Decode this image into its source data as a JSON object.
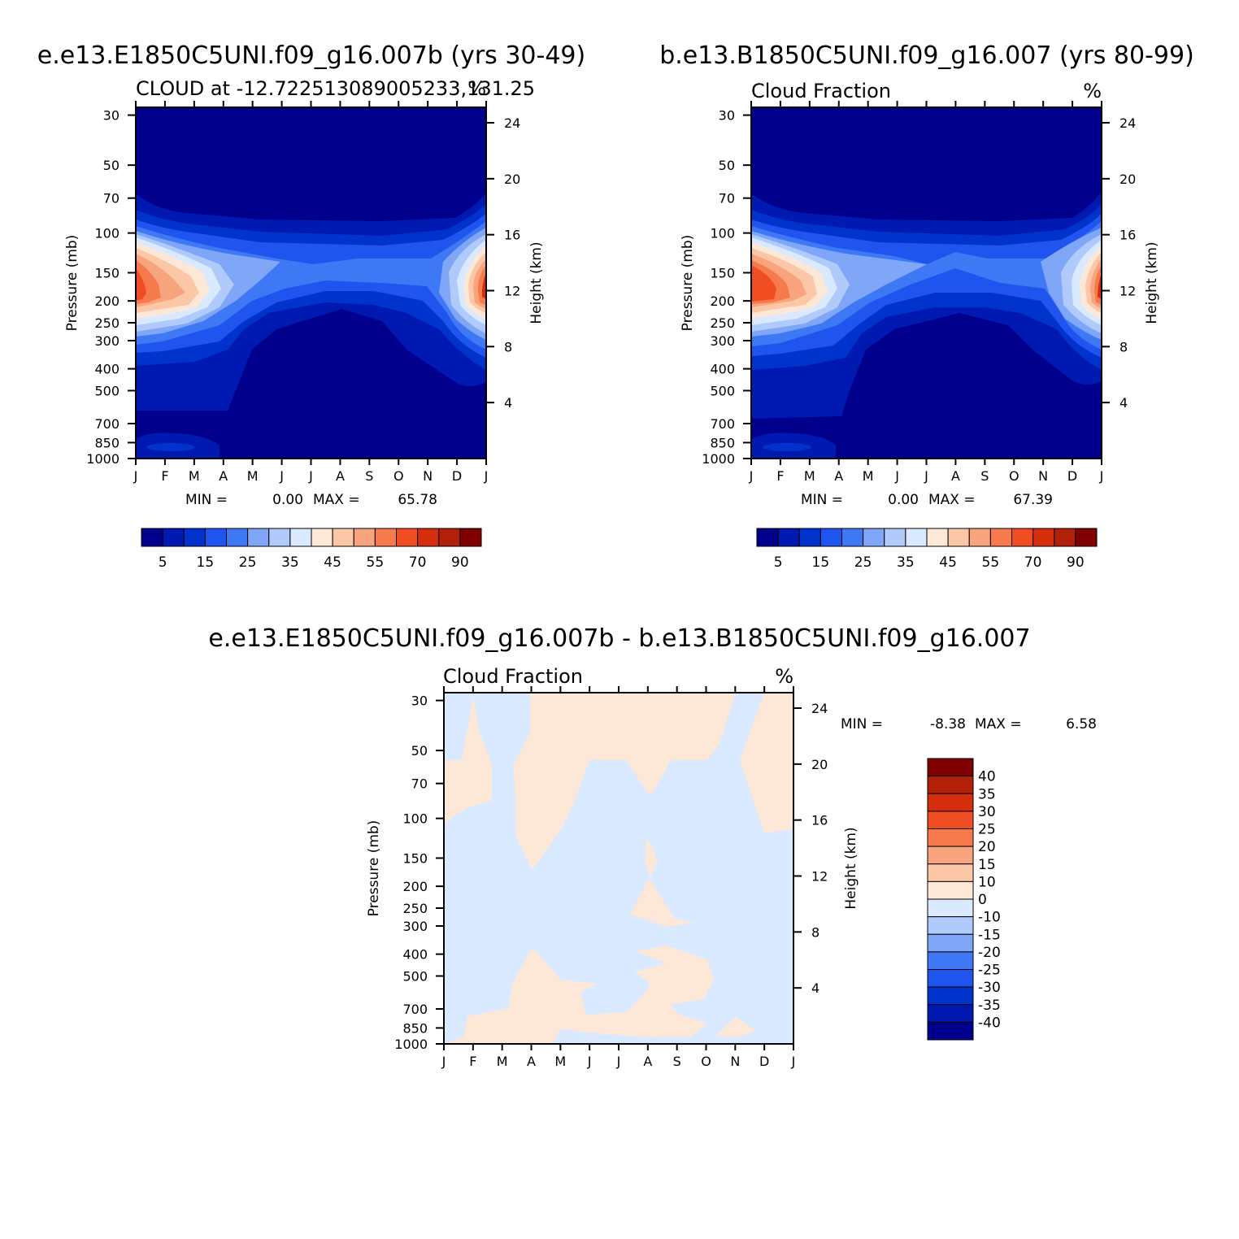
{
  "chart_data": [
    {
      "type": "heatmap",
      "case_title": "e.e13.E1850C5UNI.f09_g16.007b (yrs 30-49)",
      "left_title": "CLOUD at -12.722513089005233,131.25",
      "right_title": "%",
      "ylabel": "Pressure (mb)",
      "ylabel_right": "Height (km)",
      "xticks": [
        "J",
        "F",
        "M",
        "A",
        "M",
        "J",
        "J",
        "A",
        "S",
        "O",
        "N",
        "D",
        "J"
      ],
      "yticks": [
        "30",
        "50",
        "70",
        "100",
        "150",
        "200",
        "250",
        "300",
        "400",
        "500",
        "700",
        "850",
        "1000"
      ],
      "yticks_right": [
        "24",
        "20",
        "16",
        "12",
        "8",
        "4"
      ],
      "min_label": "MIN =",
      "min_value": "0.00",
      "max_label": "MAX =",
      "max_value": "65.78",
      "colorbar_ticks": [
        "5",
        "15",
        "25",
        "35",
        "45",
        "55",
        "70",
        "90"
      ],
      "features": {
        "peak_months": [
          "J",
          "F",
          "M",
          "D"
        ],
        "peak_pressure_mb": 150,
        "peak_value": 65.78
      }
    },
    {
      "type": "heatmap",
      "case_title": "b.e13.B1850C5UNI.f09_g16.007 (yrs 80-99)",
      "left_title": "Cloud Fraction",
      "right_title": "%",
      "ylabel": "Pressure (mb)",
      "ylabel_right": "Height (km)",
      "xticks": [
        "J",
        "F",
        "M",
        "A",
        "M",
        "J",
        "J",
        "A",
        "S",
        "O",
        "N",
        "D",
        "J"
      ],
      "yticks": [
        "30",
        "50",
        "70",
        "100",
        "150",
        "200",
        "250",
        "300",
        "400",
        "500",
        "700",
        "850",
        "1000"
      ],
      "yticks_right": [
        "24",
        "20",
        "16",
        "12",
        "8",
        "4"
      ],
      "min_label": "MIN =",
      "min_value": "0.00",
      "max_label": "MAX =",
      "max_value": "67.39",
      "colorbar_ticks": [
        "5",
        "15",
        "25",
        "35",
        "45",
        "55",
        "70",
        "90"
      ],
      "features": {
        "peak_months": [
          "J",
          "F",
          "M",
          "D"
        ],
        "peak_pressure_mb": 150,
        "peak_value": 67.39
      }
    },
    {
      "type": "heatmap",
      "case_title": "e.e13.E1850C5UNI.f09_g16.007b - b.e13.B1850C5UNI.f09_g16.007",
      "left_title": "Cloud Fraction",
      "right_title": "%",
      "ylabel": "Pressure (mb)",
      "ylabel_right": "Height (km)",
      "xticks": [
        "J",
        "F",
        "M",
        "A",
        "M",
        "J",
        "J",
        "A",
        "S",
        "O",
        "N",
        "D",
        "J"
      ],
      "yticks": [
        "30",
        "50",
        "70",
        "100",
        "150",
        "200",
        "250",
        "300",
        "400",
        "500",
        "700",
        "850",
        "1000"
      ],
      "yticks_right": [
        "24",
        "20",
        "16",
        "12",
        "8",
        "4"
      ],
      "min_label": "MIN =",
      "min_value": "-8.38",
      "max_label": "MAX =",
      "max_value": "6.58",
      "colorbar_ticks": [
        "40",
        "35",
        "30",
        "25",
        "20",
        "15",
        "10",
        "0",
        "-10",
        "-15",
        "-20",
        "-25",
        "-30",
        "-35",
        "-40"
      ]
    }
  ],
  "colors": {
    "seq": [
      "#00008c",
      "#0019b0",
      "#0033cc",
      "#1f55ee",
      "#3f78f4",
      "#7fa6f7",
      "#b0cafc",
      "#d9e9ff",
      "#fde8d8",
      "#fbc7a6",
      "#f8a47e",
      "#f67a4c",
      "#f04e22",
      "#d62d0c",
      "#b2200a",
      "#7f0000"
    ],
    "diff": [
      "#7f0000",
      "#b2200a",
      "#d62d0c",
      "#f04e22",
      "#f67a4c",
      "#f8a47e",
      "#fbc7a6",
      "#fde8d8",
      "#d9e9ff",
      "#b0cafc",
      "#7fa6f7",
      "#3f78f4",
      "#1f55ee",
      "#0033cc",
      "#0019b0",
      "#00008c"
    ]
  }
}
